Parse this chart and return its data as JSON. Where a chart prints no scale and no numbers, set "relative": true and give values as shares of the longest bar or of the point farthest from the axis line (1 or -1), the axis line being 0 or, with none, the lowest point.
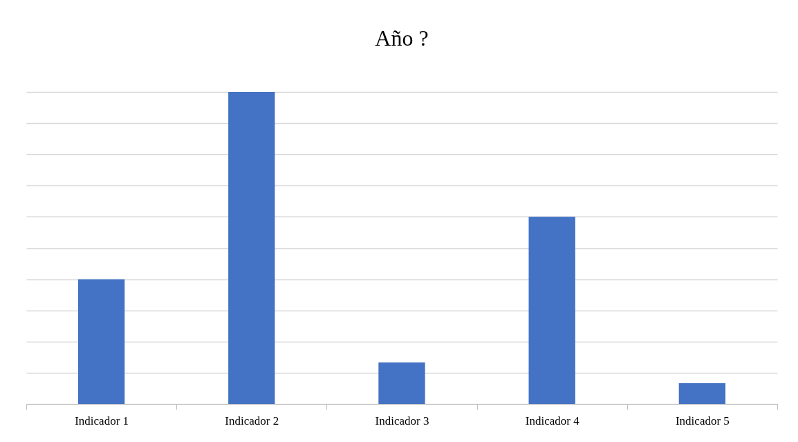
{
  "chart_data": {
    "type": "bar",
    "title": "Año ?",
    "categories": [
      "Indicador 1",
      "Indicador 2",
      "Indicador 3",
      "Indicador 4",
      "Indicador 5"
    ],
    "values": [
      0.4,
      1,
      0.1333,
      0.6,
      0.0667
    ],
    "color": "#4472c4",
    "relative": true,
    "grid": "y"
  }
}
